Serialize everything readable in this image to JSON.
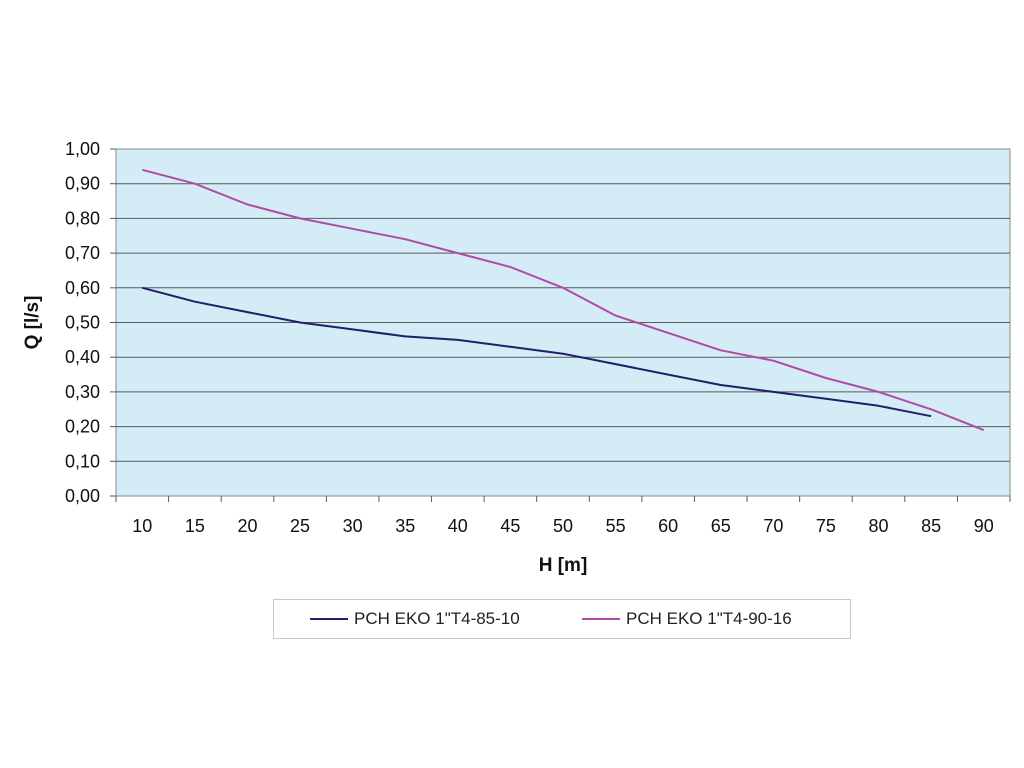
{
  "chart_data": {
    "type": "line",
    "xlabel": "H [m]",
    "ylabel": "Q [l/s]",
    "x": [
      10,
      15,
      20,
      25,
      30,
      35,
      40,
      45,
      50,
      55,
      60,
      65,
      70,
      75,
      80,
      85,
      90
    ],
    "x_tick_labels": [
      "10",
      "15",
      "20",
      "25",
      "30",
      "35",
      "40",
      "45",
      "50",
      "55",
      "60",
      "65",
      "70",
      "75",
      "80",
      "85",
      "90"
    ],
    "ylim": [
      0,
      1
    ],
    "y_ticks": [
      0,
      0.1,
      0.2,
      0.3,
      0.4,
      0.5,
      0.6,
      0.7,
      0.8,
      0.9,
      1.0
    ],
    "y_tick_labels": [
      "0,00",
      "0,10",
      "0,20",
      "0,30",
      "0,40",
      "0,50",
      "0,60",
      "0,70",
      "0,80",
      "0,90",
      "1,00"
    ],
    "grid": "horizontal",
    "legend_position": "bottom",
    "plot_background": "#d4ecf5",
    "series": [
      {
        "name": "PCH EKO 1\"T4-85-10",
        "color": "#1f1f6b",
        "x": [
          10,
          15,
          20,
          25,
          30,
          35,
          40,
          45,
          50,
          55,
          60,
          65,
          70,
          75,
          80,
          85
        ],
        "values": [
          0.6,
          0.56,
          0.53,
          0.5,
          0.48,
          0.46,
          0.45,
          0.43,
          0.41,
          0.38,
          0.35,
          0.32,
          0.3,
          0.28,
          0.26,
          0.23
        ]
      },
      {
        "name": "PCH EKO 1\"T4-90-16",
        "color": "#b04aa6",
        "x": [
          10,
          15,
          20,
          25,
          30,
          35,
          40,
          45,
          50,
          55,
          60,
          65,
          70,
          75,
          80,
          85,
          90
        ],
        "values": [
          0.94,
          0.9,
          0.84,
          0.8,
          0.77,
          0.74,
          0.7,
          0.66,
          0.6,
          0.52,
          0.47,
          0.42,
          0.39,
          0.34,
          0.3,
          0.25,
          0.19
        ]
      }
    ]
  }
}
